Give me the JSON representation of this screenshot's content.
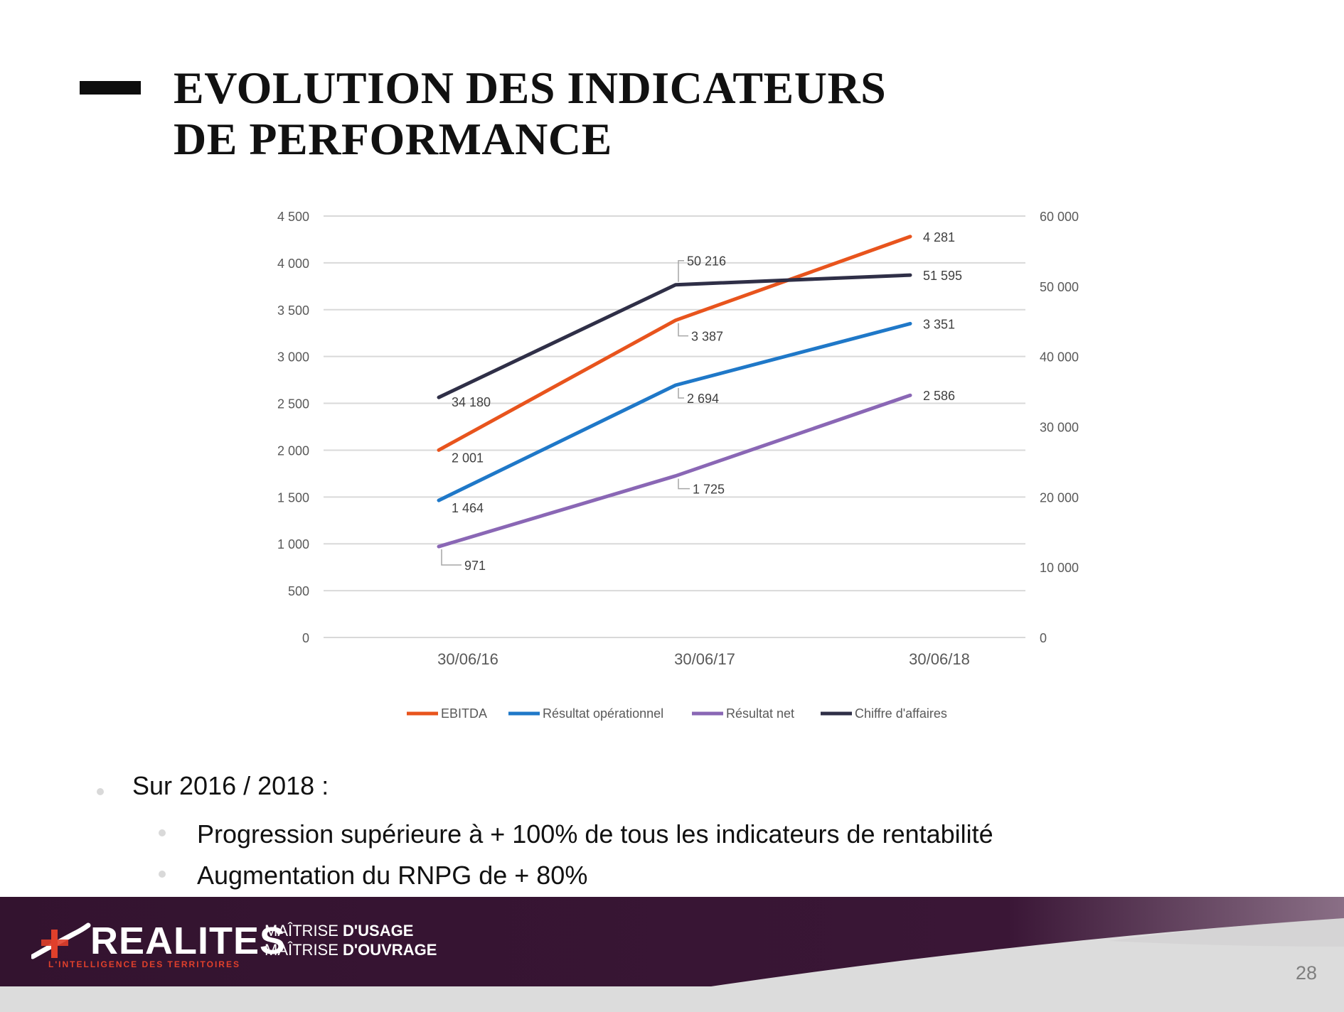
{
  "title": {
    "line1": "EVOLUTION DES INDICATEURS",
    "line2": "DE PERFORMANCE"
  },
  "chart_data": {
    "type": "line",
    "categories": [
      "30/06/16",
      "30/06/17",
      "30/06/18"
    ],
    "y_left": {
      "min": 0,
      "max": 4500,
      "ticks": [
        0,
        500,
        1000,
        1500,
        2000,
        2500,
        3000,
        3500,
        4000,
        4500
      ],
      "tick_labels": [
        "0",
        "500",
        "1 000",
        "1 500",
        "2 000",
        "2 500",
        "3 000",
        "3 500",
        "4 000",
        "4 500"
      ]
    },
    "y_right": {
      "min": 0,
      "max": 60000,
      "ticks": [
        0,
        10000,
        20000,
        30000,
        40000,
        50000,
        60000
      ],
      "tick_labels": [
        "0",
        "10 000",
        "20 000",
        "30 000",
        "40 000",
        "50 000",
        "60 000"
      ]
    },
    "grid": true,
    "legend_position": "bottom",
    "series": [
      {
        "name": "EBITDA",
        "axis": "left",
        "color": "#e8541d",
        "values": [
          2001,
          3387,
          4281
        ],
        "labels": [
          "2 001",
          "3 387",
          "4 281"
        ]
      },
      {
        "name": "Résultat opérationnel",
        "axis": "left",
        "color": "#1f78c8",
        "values": [
          1464,
          2694,
          3351
        ],
        "labels": [
          "1 464",
          "2 694",
          "3 351"
        ]
      },
      {
        "name": "Résultat net",
        "axis": "left",
        "color": "#8a67b5",
        "values": [
          971,
          1725,
          2586
        ],
        "labels": [
          "971",
          "1 725",
          "2 586"
        ]
      },
      {
        "name": "Chiffre d'affaires",
        "axis": "right",
        "color": "#2f2f47",
        "values": [
          34180,
          50216,
          51595
        ],
        "labels": [
          "34 180",
          "50 216",
          "51 595"
        ]
      }
    ]
  },
  "bullets": {
    "main": "Sur 2016 / 2018 :",
    "sub": [
      "Progression supérieure à + 100% de tous les indicateurs de rentabilité",
      "Augmentation du RNPG de + 80%"
    ]
  },
  "footer": {
    "logo": "REALITES",
    "logo_tagline": "L'INTELLIGENCE DES TERRITOIRES",
    "tag1_prefix": "MAÎTRISE ",
    "tag1_bold": "D'USAGE",
    "tag2_prefix": "MAÎTRISE ",
    "tag2_bold": "D'OUVRAGE",
    "page_number": "28",
    "colors": {
      "band": "#33132f",
      "accent": "#e0402b"
    }
  }
}
